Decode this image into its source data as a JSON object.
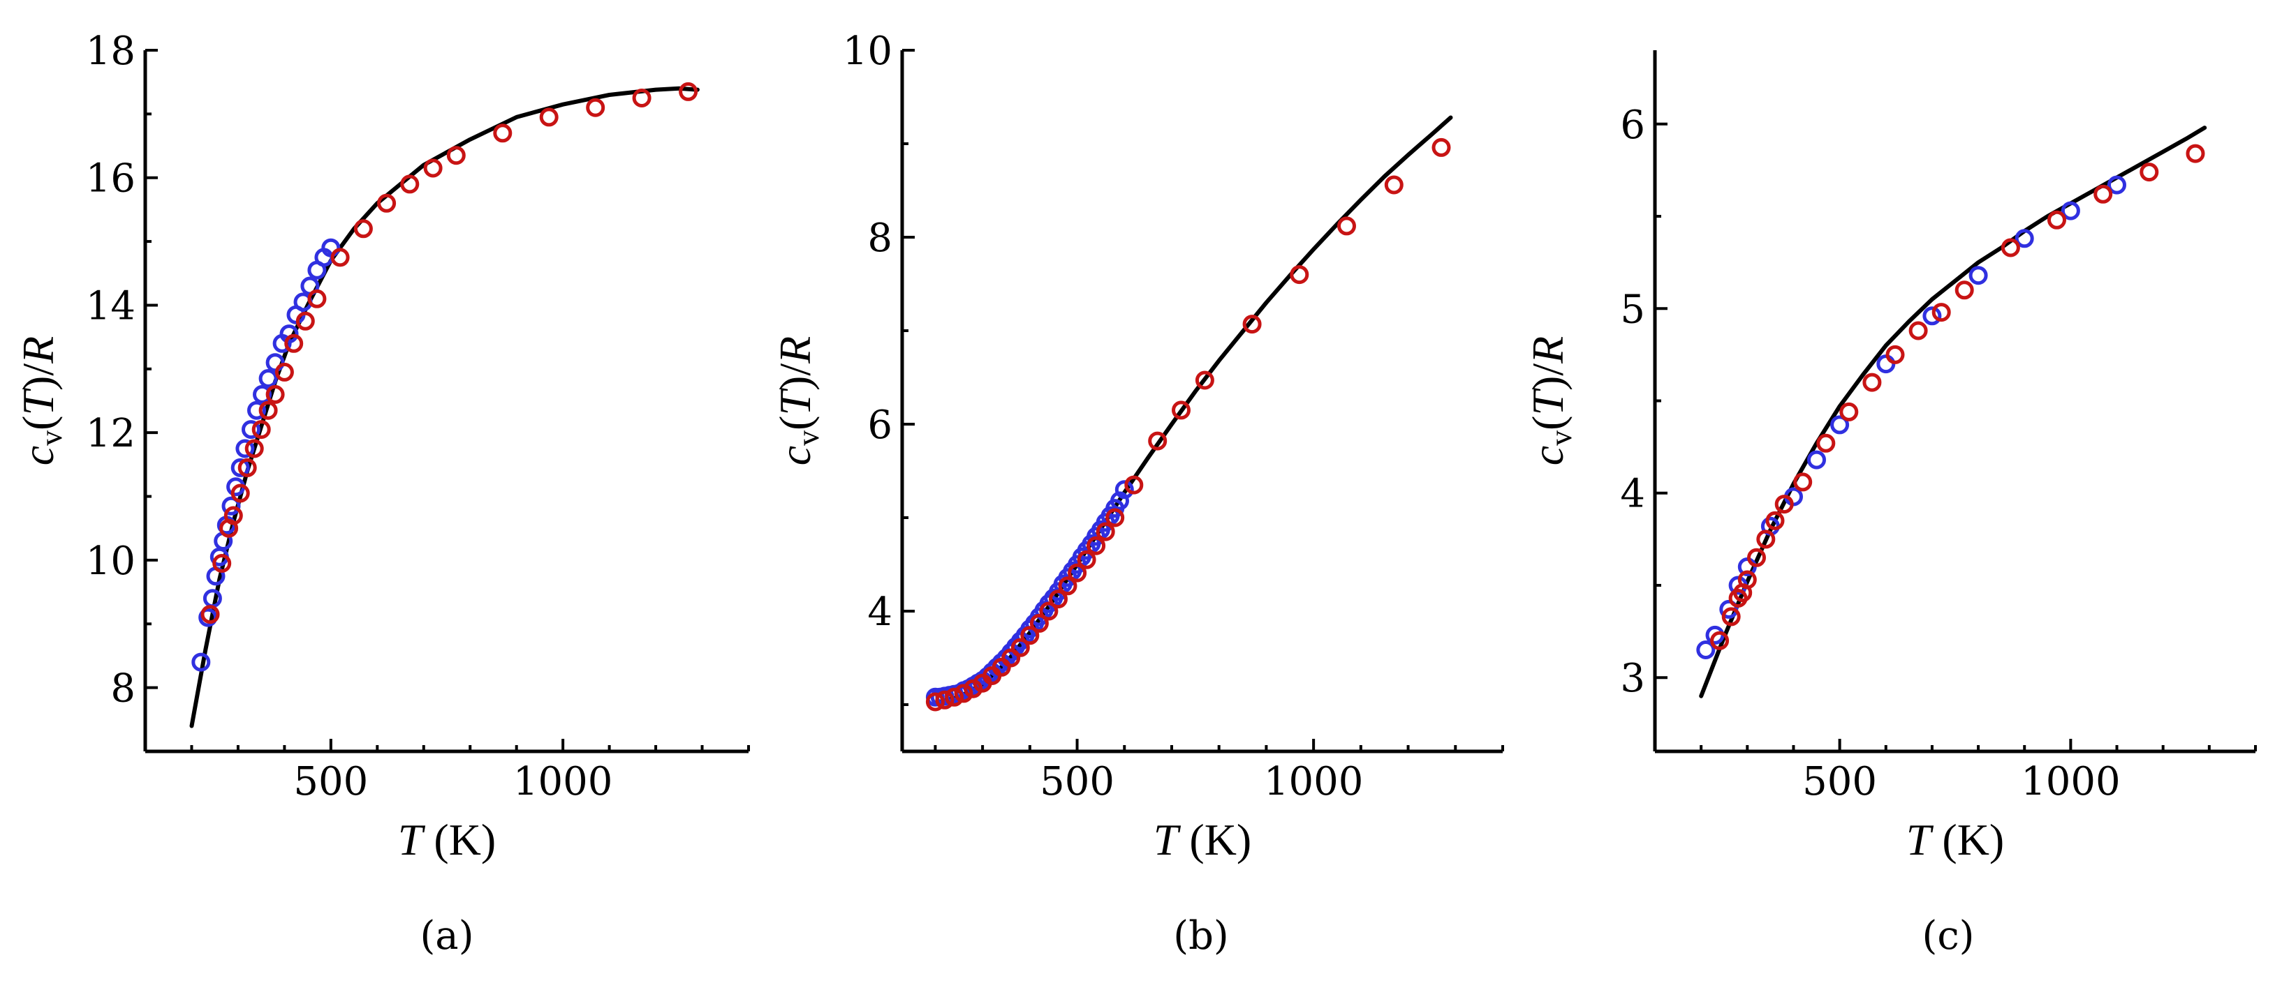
{
  "figure": {
    "panel_labels": [
      "(a)",
      "(b)",
      "(c)"
    ]
  },
  "colors": {
    "blue": "#3030e0",
    "red": "#c81414",
    "line": "#000000"
  },
  "chart_data": [
    {
      "type": "scatter",
      "panel": "(a)",
      "xlabel": "T (K)",
      "ylabel": "c_v(T)/R",
      "xlim": [
        100,
        1400
      ],
      "ylim": [
        7,
        18
      ],
      "xticks": [
        500,
        1000
      ],
      "yticks": [
        8,
        10,
        12,
        14,
        16,
        18
      ],
      "series": [
        {
          "name": "fit",
          "kind": "line",
          "x": [
            200,
            230,
            260,
            290,
            320,
            350,
            380,
            410,
            450,
            500,
            550,
            600,
            650,
            700,
            800,
            900,
            1000,
            1100,
            1200,
            1250,
            1290
          ],
          "y": [
            7.4,
            8.6,
            9.7,
            10.6,
            11.4,
            12.1,
            12.8,
            13.4,
            14.0,
            14.7,
            15.2,
            15.6,
            15.9,
            16.2,
            16.6,
            16.95,
            17.15,
            17.3,
            17.38,
            17.4,
            17.38
          ]
        },
        {
          "name": "blue",
          "kind": "markers",
          "x": [
            220,
            235,
            245,
            252,
            260,
            268,
            275,
            285,
            295,
            305,
            315,
            328,
            340,
            352,
            365,
            380,
            395,
            410,
            425,
            440,
            455,
            470,
            485,
            500
          ],
          "y": [
            8.4,
            9.1,
            9.4,
            9.75,
            10.05,
            10.3,
            10.55,
            10.85,
            11.15,
            11.45,
            11.75,
            12.05,
            12.35,
            12.6,
            12.85,
            13.1,
            13.4,
            13.55,
            13.85,
            14.05,
            14.3,
            14.55,
            14.75,
            14.9
          ]
        },
        {
          "name": "red",
          "kind": "markers",
          "x": [
            240,
            265,
            280,
            290,
            305,
            320,
            335,
            350,
            365,
            380,
            400,
            420,
            445,
            470,
            520,
            570,
            620,
            670,
            720,
            770,
            870,
            970,
            1070,
            1170,
            1270
          ],
          "y": [
            9.15,
            9.95,
            10.5,
            10.7,
            11.05,
            11.45,
            11.75,
            12.05,
            12.35,
            12.6,
            12.95,
            13.4,
            13.75,
            14.1,
            14.75,
            15.2,
            15.6,
            15.9,
            16.15,
            16.35,
            16.7,
            16.95,
            17.1,
            17.25,
            17.35
          ]
        }
      ]
    },
    {
      "type": "scatter",
      "panel": "(b)",
      "xlabel": "T (K)",
      "ylabel": "c_v(T)/R",
      "xlim": [
        130,
        1400
      ],
      "ylim": [
        2.5,
        10
      ],
      "xticks": [
        500,
        1000
      ],
      "yticks": [
        4,
        6,
        8,
        10
      ],
      "series": [
        {
          "name": "fit",
          "kind": "line",
          "x": [
            200,
            250,
            300,
            350,
            400,
            450,
            500,
            550,
            600,
            650,
            700,
            750,
            800,
            850,
            900,
            950,
            1000,
            1050,
            1100,
            1150,
            1200,
            1250,
            1290
          ],
          "y": [
            3.02,
            3.08,
            3.22,
            3.45,
            3.77,
            4.12,
            4.5,
            4.88,
            5.27,
            5.64,
            6.0,
            6.35,
            6.68,
            6.99,
            7.3,
            7.59,
            7.87,
            8.14,
            8.4,
            8.65,
            8.88,
            9.1,
            9.28
          ]
        },
        {
          "name": "blue",
          "kind": "markers",
          "x": [
            200,
            210,
            220,
            230,
            240,
            250,
            260,
            270,
            280,
            290,
            300,
            310,
            320,
            330,
            340,
            350,
            360,
            370,
            380,
            390,
            400,
            410,
            420,
            430,
            440,
            450,
            460,
            470,
            480,
            490,
            500,
            510,
            520,
            530,
            540,
            550,
            560,
            570,
            580,
            590,
            600
          ],
          "y": [
            3.08,
            3.08,
            3.09,
            3.1,
            3.11,
            3.12,
            3.15,
            3.17,
            3.2,
            3.23,
            3.26,
            3.3,
            3.35,
            3.4,
            3.45,
            3.5,
            3.56,
            3.62,
            3.68,
            3.74,
            3.81,
            3.87,
            3.94,
            4.01,
            4.08,
            4.14,
            4.21,
            4.29,
            4.36,
            4.43,
            4.5,
            4.58,
            4.65,
            4.72,
            4.8,
            4.87,
            4.95,
            5.02,
            5.1,
            5.18,
            5.3
          ]
        },
        {
          "name": "red",
          "kind": "markers",
          "x": [
            200,
            220,
            240,
            260,
            280,
            300,
            320,
            340,
            360,
            380,
            400,
            420,
            440,
            460,
            480,
            500,
            520,
            540,
            560,
            580,
            620,
            670,
            720,
            770,
            870,
            970,
            1070,
            1170,
            1270
          ],
          "y": [
            3.03,
            3.05,
            3.08,
            3.12,
            3.17,
            3.23,
            3.31,
            3.4,
            3.5,
            3.61,
            3.74,
            3.87,
            4.0,
            4.13,
            4.27,
            4.41,
            4.55,
            4.7,
            4.85,
            5.0,
            5.35,
            5.82,
            6.15,
            6.47,
            7.07,
            7.6,
            8.12,
            8.56,
            8.96
          ]
        }
      ]
    },
    {
      "type": "scatter",
      "panel": "(c)",
      "xlabel": "T (K)",
      "ylabel": "c_v(T)/R",
      "xlim": [
        100,
        1400
      ],
      "ylim": [
        2.6,
        6.4
      ],
      "xticks": [
        500,
        1000
      ],
      "yticks": [
        3,
        4,
        5,
        6
      ],
      "series": [
        {
          "name": "fit",
          "kind": "line",
          "x": [
            200,
            250,
            300,
            350,
            400,
            450,
            500,
            550,
            600,
            650,
            700,
            750,
            800,
            850,
            900,
            950,
            1000,
            1050,
            1100,
            1150,
            1200,
            1250,
            1290
          ],
          "y": [
            2.9,
            3.22,
            3.52,
            3.8,
            4.05,
            4.27,
            4.47,
            4.64,
            4.8,
            4.93,
            5.05,
            5.15,
            5.25,
            5.33,
            5.42,
            5.5,
            5.57,
            5.64,
            5.71,
            5.78,
            5.85,
            5.92,
            5.98
          ]
        },
        {
          "name": "blue",
          "kind": "markers",
          "x": [
            210,
            230,
            260,
            280,
            300,
            350,
            400,
            450,
            500,
            600,
            700,
            800,
            900,
            1000,
            1100
          ],
          "y": [
            3.15,
            3.23,
            3.37,
            3.5,
            3.6,
            3.82,
            3.98,
            4.18,
            4.37,
            4.7,
            4.96,
            5.18,
            5.38,
            5.53,
            5.67
          ]
        },
        {
          "name": "red",
          "kind": "markers",
          "x": [
            240,
            265,
            280,
            290,
            300,
            320,
            340,
            360,
            380,
            420,
            470,
            520,
            570,
            620,
            670,
            720,
            770,
            870,
            970,
            1070,
            1170,
            1270
          ],
          "y": [
            3.2,
            3.33,
            3.43,
            3.46,
            3.53,
            3.65,
            3.75,
            3.85,
            3.94,
            4.06,
            4.27,
            4.44,
            4.6,
            4.75,
            4.88,
            4.98,
            5.1,
            5.33,
            5.48,
            5.62,
            5.74,
            5.84
          ]
        }
      ]
    }
  ]
}
